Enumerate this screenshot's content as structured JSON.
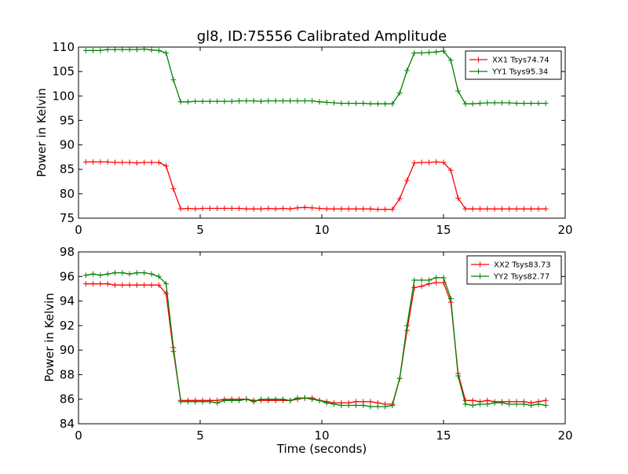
{
  "chart_data": [
    {
      "type": "line",
      "title": "gl8, ID:75556 Calibrated Amplitude",
      "xlabel": "",
      "ylabel": "Power in Kelvin",
      "xlim": [
        0,
        20
      ],
      "ylim": [
        75,
        110
      ],
      "xticks": [
        "0",
        "5",
        "10",
        "15",
        "20"
      ],
      "yticks": [
        "75",
        "80",
        "85",
        "90",
        "95",
        "100",
        "105",
        "110"
      ],
      "legend_position": "top-right",
      "grid": false,
      "x": [
        0.3,
        0.6,
        0.9,
        1.2,
        1.5,
        1.8,
        2.1,
        2.4,
        2.7,
        3.0,
        3.3,
        3.6,
        3.9,
        4.2,
        4.5,
        4.8,
        5.1,
        5.4,
        5.7,
        6.0,
        6.3,
        6.6,
        6.9,
        7.2,
        7.5,
        7.8,
        8.1,
        8.4,
        8.7,
        9.0,
        9.3,
        9.6,
        9.9,
        10.2,
        10.5,
        10.8,
        11.1,
        11.4,
        11.7,
        12.0,
        12.3,
        12.6,
        12.9,
        13.2,
        13.5,
        13.8,
        14.1,
        14.4,
        14.7,
        15.0,
        15.3,
        15.6,
        15.9,
        16.2,
        16.5,
        16.8,
        17.1,
        17.4,
        17.7,
        18.0,
        18.3,
        18.6,
        18.9,
        19.2
      ],
      "series": [
        {
          "name": "XX1 Tsys74.74",
          "color": "#ff0000",
          "values": [
            86.5,
            86.5,
            86.5,
            86.5,
            86.4,
            86.4,
            86.4,
            86.3,
            86.4,
            86.4,
            86.4,
            85.7,
            81.0,
            76.9,
            77.0,
            76.9,
            77.0,
            77.0,
            77.0,
            77.0,
            77.0,
            77.0,
            76.9,
            76.9,
            76.9,
            77.0,
            76.9,
            77.0,
            76.9,
            77.1,
            77.2,
            77.1,
            77.0,
            76.9,
            76.9,
            76.9,
            76.9,
            76.9,
            76.9,
            76.9,
            76.8,
            76.8,
            76.8,
            79.0,
            82.7,
            86.3,
            86.4,
            86.4,
            86.5,
            86.4,
            84.8,
            79.1,
            76.9,
            76.9,
            76.9,
            76.9,
            76.9,
            76.9,
            76.9,
            76.9,
            76.9,
            76.9,
            76.9,
            76.9
          ]
        },
        {
          "name": "YY1 Tsys95.34",
          "color": "#008000",
          "values": [
            109.3,
            109.3,
            109.3,
            109.5,
            109.5,
            109.5,
            109.5,
            109.5,
            109.6,
            109.4,
            109.3,
            108.8,
            103.3,
            98.8,
            98.8,
            98.9,
            98.9,
            98.9,
            98.9,
            98.9,
            98.9,
            99.0,
            99.0,
            99.0,
            98.9,
            99.0,
            99.0,
            99.0,
            99.0,
            99.0,
            99.0,
            99.0,
            98.8,
            98.7,
            98.6,
            98.5,
            98.5,
            98.5,
            98.5,
            98.4,
            98.4,
            98.4,
            98.4,
            100.6,
            105.2,
            108.8,
            108.8,
            108.9,
            109.0,
            109.2,
            107.3,
            101.0,
            98.4,
            98.4,
            98.5,
            98.6,
            98.6,
            98.6,
            98.6,
            98.5,
            98.5,
            98.5,
            98.5,
            98.5
          ]
        }
      ]
    },
    {
      "type": "line",
      "title": "",
      "xlabel": "Time (seconds)",
      "ylabel": "Power in Kelvin",
      "xlim": [
        0,
        20
      ],
      "ylim": [
        84,
        98
      ],
      "xticks": [
        "0",
        "5",
        "10",
        "15",
        "20"
      ],
      "yticks": [
        "84",
        "86",
        "88",
        "90",
        "92",
        "94",
        "96",
        "98"
      ],
      "legend_position": "top-right",
      "grid": false,
      "x": [
        0.3,
        0.6,
        0.9,
        1.2,
        1.5,
        1.8,
        2.1,
        2.4,
        2.7,
        3.0,
        3.3,
        3.6,
        3.9,
        4.2,
        4.5,
        4.8,
        5.1,
        5.4,
        5.7,
        6.0,
        6.3,
        6.6,
        6.9,
        7.2,
        7.5,
        7.8,
        8.1,
        8.4,
        8.7,
        9.0,
        9.3,
        9.6,
        9.9,
        10.2,
        10.5,
        10.8,
        11.1,
        11.4,
        11.7,
        12.0,
        12.3,
        12.6,
        12.9,
        13.2,
        13.5,
        13.8,
        14.1,
        14.4,
        14.7,
        15.0,
        15.3,
        15.6,
        15.9,
        16.2,
        16.5,
        16.8,
        17.1,
        17.4,
        17.7,
        18.0,
        18.3,
        18.6,
        18.9,
        19.2
      ],
      "series": [
        {
          "name": "XX2 Tsys83.73",
          "color": "#ff0000",
          "values": [
            95.4,
            95.4,
            95.4,
            95.4,
            95.3,
            95.3,
            95.3,
            95.3,
            95.3,
            95.3,
            95.3,
            94.6,
            89.9,
            85.9,
            85.9,
            85.9,
            85.9,
            85.9,
            85.9,
            86.0,
            86.0,
            86.0,
            86.0,
            85.9,
            85.9,
            85.9,
            85.9,
            85.9,
            85.9,
            86.0,
            86.1,
            86.1,
            85.9,
            85.8,
            85.7,
            85.7,
            85.7,
            85.8,
            85.8,
            85.8,
            85.7,
            85.6,
            85.6,
            87.7,
            91.6,
            95.1,
            95.2,
            95.4,
            95.5,
            95.5,
            93.9,
            88.1,
            85.9,
            85.9,
            85.8,
            85.9,
            85.8,
            85.8,
            85.8,
            85.8,
            85.8,
            85.7,
            85.8,
            85.9
          ]
        },
        {
          "name": "YY2 Tsys82.77",
          "color": "#008000",
          "values": [
            96.1,
            96.2,
            96.1,
            96.2,
            96.3,
            96.3,
            96.2,
            96.3,
            96.3,
            96.2,
            96.0,
            95.4,
            90.2,
            85.8,
            85.8,
            85.8,
            85.8,
            85.8,
            85.7,
            85.9,
            85.9,
            85.9,
            86.0,
            85.8,
            86.0,
            86.0,
            86.0,
            86.0,
            85.9,
            86.1,
            86.1,
            86.0,
            85.9,
            85.7,
            85.6,
            85.5,
            85.5,
            85.5,
            85.5,
            85.4,
            85.4,
            85.4,
            85.5,
            87.7,
            92.0,
            95.7,
            95.7,
            95.7,
            95.9,
            95.9,
            94.2,
            87.9,
            85.6,
            85.5,
            85.6,
            85.6,
            85.7,
            85.7,
            85.6,
            85.6,
            85.6,
            85.5,
            85.6,
            85.5
          ]
        }
      ]
    }
  ]
}
